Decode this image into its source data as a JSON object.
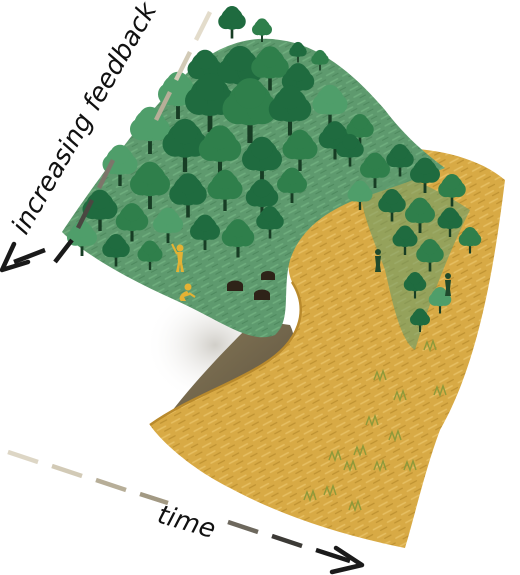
{
  "labels": {
    "feedback_axis": "increasing feedback",
    "time_axis": "time"
  },
  "colors": {
    "forest_ground": "#5e9a6e",
    "forest_tree_dark": "#1f6b3f",
    "forest_tree_mid": "#2f7f4b",
    "forest_tree_light": "#4f9e6a",
    "savanna_ground": "#d8aa45",
    "savanna_dark": "#b98a2c",
    "fold_shadow": "#6b6048",
    "figure_yellow": "#e3b234",
    "stump_dark": "#2e2318",
    "arrow_dark": "#1a1a1a",
    "arrow_light": "#d9d2c0"
  },
  "icons": {
    "forest": "tree-icon",
    "stump": "tree-stump-icon",
    "person": "person-icon"
  }
}
